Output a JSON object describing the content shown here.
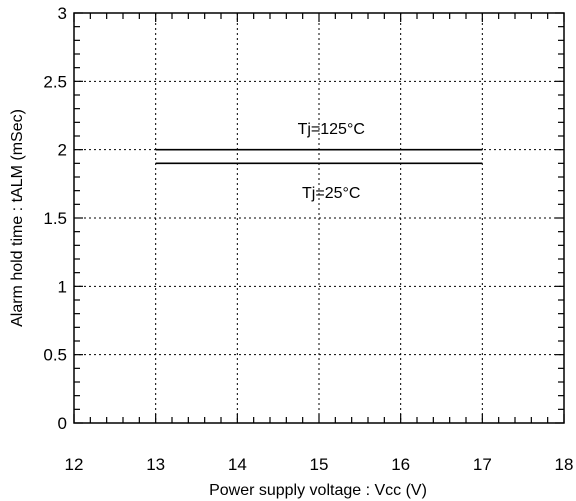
{
  "chart_data": {
    "type": "line",
    "title": "",
    "xlabel": "Power supply voltage : Vcc (V)",
    "ylabel": "Alarm hold time : tALM (mSec)",
    "xlim": [
      12,
      18
    ],
    "ylim": [
      0,
      3
    ],
    "x_ticks": [
      12,
      13,
      14,
      15,
      16,
      17,
      18
    ],
    "y_ticks": [
      0,
      0.5,
      1,
      1.5,
      2,
      2.5,
      3
    ],
    "x_tick_labels": [
      "12",
      "13",
      "14",
      "15",
      "16",
      "17",
      "18"
    ],
    "y_tick_labels": [
      "0",
      "0.5",
      "1",
      "1.5",
      "2",
      "2.5",
      "3"
    ],
    "grid": true,
    "grid_style": "dotted",
    "series": [
      {
        "name": "Tj=125°C",
        "x": [
          13,
          17
        ],
        "y": [
          2.0,
          2.0
        ]
      },
      {
        "name": "Tj=25°C",
        "x": [
          13,
          17
        ],
        "y": [
          1.9,
          1.9
        ]
      }
    ],
    "annotations": [
      {
        "text": "Tj=125°C",
        "x": 15.15,
        "y": 2.16
      },
      {
        "text": "Tj=25°C",
        "x": 15.15,
        "y": 1.69
      }
    ]
  }
}
